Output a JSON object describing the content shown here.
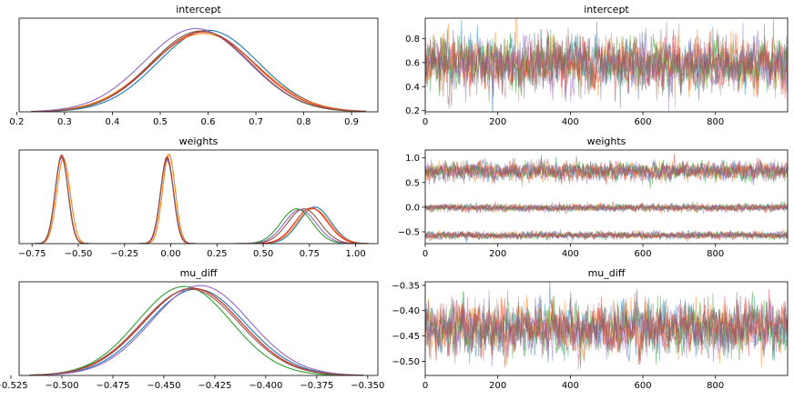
{
  "chart_data": [
    {
      "type": "line",
      "kind": "kde",
      "title": "intercept",
      "xlim": [
        0.205,
        0.955
      ],
      "ylim": [
        0,
        4.5
      ],
      "x_ticks": [
        0.2,
        0.3,
        0.4,
        0.5,
        0.6,
        0.7,
        0.8,
        0.9
      ],
      "y_ticks": [],
      "curves": [
        {
          "color": "#1f77b4",
          "gauss": [
            [
              0.6,
              0.105,
              1.0
            ]
          ]
        },
        {
          "color": "#ff7f0e",
          "gauss": [
            [
              0.59,
              0.11,
              0.96
            ]
          ]
        },
        {
          "color": "#2ca02c",
          "gauss": [
            [
              0.585,
              0.103,
              0.99
            ]
          ]
        },
        {
          "color": "#d62728",
          "gauss": [
            [
              0.59,
              0.106,
              0.98
            ]
          ]
        },
        {
          "color": "#9467bd",
          "gauss": [
            [
              0.575,
              0.108,
              1.02
            ]
          ]
        },
        {
          "color": "#8c564b",
          "gauss": [
            [
              0.585,
              0.104,
              0.99
            ]
          ]
        }
      ],
      "curve_range": [
        0.23,
        0.93
      ],
      "peak_y": 4.0
    },
    {
      "type": "line",
      "kind": "trace",
      "title": "intercept",
      "xlim": [
        0,
        999
      ],
      "ylim": [
        0.19,
        0.97
      ],
      "x_ticks": [
        0,
        200,
        400,
        600,
        800
      ],
      "y_ticks": [
        0.2,
        0.4,
        0.6,
        0.8
      ],
      "y_tick_labels": [
        "0.2",
        "0.4",
        "0.6",
        "0.8"
      ],
      "n_draws": 1000,
      "chains": [
        {
          "color": "#1f77b4",
          "bands": [
            {
              "mean": 0.59,
              "sd": 0.105
            }
          ]
        },
        {
          "color": "#ff7f0e",
          "bands": [
            {
              "mean": 0.59,
              "sd": 0.105
            }
          ]
        },
        {
          "color": "#2ca02c",
          "bands": [
            {
              "mean": 0.59,
              "sd": 0.105
            }
          ]
        },
        {
          "color": "#d62728",
          "bands": [
            {
              "mean": 0.59,
              "sd": 0.105
            }
          ]
        },
        {
          "color": "#9467bd",
          "bands": [
            {
              "mean": 0.59,
              "sd": 0.105
            }
          ]
        },
        {
          "color": "#8c564b",
          "bands": [
            {
              "mean": 0.59,
              "sd": 0.105
            }
          ]
        }
      ]
    },
    {
      "type": "line",
      "kind": "kde",
      "title": "weights",
      "xlim": [
        -0.82,
        1.12
      ],
      "ylim": [
        0,
        11
      ],
      "x_ticks": [
        -0.75,
        -0.5,
        -0.25,
        0.0,
        0.25,
        0.5,
        0.75,
        1.0
      ],
      "x_tick_labels": [
        "−0.75",
        "−0.50",
        "−0.25",
        "0.00",
        "0.25",
        "0.50",
        "0.75",
        "1.00"
      ],
      "y_ticks": [],
      "curves": [
        {
          "color": "#1f77b4",
          "gauss": [
            [
              -0.59,
              0.035,
              1.0
            ],
            [
              -0.02,
              0.035,
              0.98
            ],
            [
              0.78,
              0.085,
              0.42
            ]
          ]
        },
        {
          "color": "#ff7f0e",
          "gauss": [
            [
              -0.58,
              0.036,
              0.98
            ],
            [
              -0.01,
              0.034,
              1.03
            ],
            [
              0.77,
              0.088,
              0.4
            ]
          ]
        },
        {
          "color": "#2ca02c",
          "gauss": [
            [
              -0.59,
              0.035,
              1.0
            ],
            [
              -0.02,
              0.035,
              0.99
            ],
            [
              0.68,
              0.085,
              0.4
            ]
          ]
        },
        {
          "color": "#d62728",
          "gauss": [
            [
              -0.59,
              0.034,
              1.02
            ],
            [
              -0.02,
              0.034,
              1.0
            ],
            [
              0.76,
              0.087,
              0.41
            ]
          ]
        },
        {
          "color": "#9467bd",
          "gauss": [
            [
              -0.59,
              0.035,
              0.99
            ],
            [
              -0.02,
              0.036,
              0.96
            ],
            [
              0.7,
              0.086,
              0.39
            ]
          ]
        },
        {
          "color": "#8c564b",
          "gauss": [
            [
              -0.59,
              0.035,
              1.0
            ],
            [
              -0.02,
              0.035,
              0.98
            ],
            [
              0.72,
              0.087,
              0.4
            ]
          ]
        }
      ],
      "curve_range": [
        -0.76,
        1.07
      ],
      "peak_y": 10.5
    },
    {
      "type": "line",
      "kind": "trace",
      "title": "weights",
      "xlim": [
        0,
        999
      ],
      "ylim": [
        -0.74,
        1.16
      ],
      "x_ticks": [
        0,
        200,
        400,
        600,
        800
      ],
      "y_ticks": [
        -0.5,
        0.0,
        0.5,
        1.0
      ],
      "y_tick_labels": [
        "−0.5",
        "0.0",
        "0.5",
        "1.0"
      ],
      "n_draws": 1000,
      "chains": [
        {
          "color": "#1f77b4",
          "bands": [
            {
              "mean": 0.73,
              "sd": 0.09
            },
            {
              "mean": -0.01,
              "sd": 0.035
            },
            {
              "mean": -0.57,
              "sd": 0.035
            }
          ]
        },
        {
          "color": "#ff7f0e",
          "bands": [
            {
              "mean": 0.73,
              "sd": 0.09
            },
            {
              "mean": -0.01,
              "sd": 0.035
            },
            {
              "mean": -0.57,
              "sd": 0.035
            }
          ]
        },
        {
          "color": "#2ca02c",
          "bands": [
            {
              "mean": 0.73,
              "sd": 0.09
            },
            {
              "mean": -0.01,
              "sd": 0.035
            },
            {
              "mean": -0.57,
              "sd": 0.035
            }
          ]
        },
        {
          "color": "#d62728",
          "bands": [
            {
              "mean": 0.73,
              "sd": 0.09
            },
            {
              "mean": -0.01,
              "sd": 0.035
            },
            {
              "mean": -0.57,
              "sd": 0.035
            }
          ]
        },
        {
          "color": "#9467bd",
          "bands": [
            {
              "mean": 0.73,
              "sd": 0.09
            },
            {
              "mean": -0.01,
              "sd": 0.035
            },
            {
              "mean": -0.57,
              "sd": 0.035
            }
          ]
        },
        {
          "color": "#8c564b",
          "bands": [
            {
              "mean": 0.73,
              "sd": 0.09
            },
            {
              "mean": -0.01,
              "sd": 0.035
            },
            {
              "mean": -0.57,
              "sd": 0.035
            }
          ]
        }
      ]
    },
    {
      "type": "line",
      "kind": "kde",
      "title": "mu_diff",
      "xlim": [
        -0.521,
        -0.345
      ],
      "ylim": [
        0,
        25
      ],
      "x_ticks": [
        -0.525,
        -0.5,
        -0.475,
        -0.45,
        -0.425,
        -0.4,
        -0.375,
        -0.35
      ],
      "x_tick_labels": [
        "−0.525",
        "−0.500",
        "−0.475",
        "−0.450",
        "−0.425",
        "−0.400",
        "−0.375",
        "−0.350"
      ],
      "y_ticks": [],
      "curves": [
        {
          "color": "#1f77b4",
          "gauss": [
            [
              -0.434,
              0.024,
              0.98
            ]
          ]
        },
        {
          "color": "#ff7f0e",
          "gauss": [
            [
              -0.436,
              0.024,
              0.99
            ]
          ]
        },
        {
          "color": "#2ca02c",
          "gauss": [
            [
              -0.44,
              0.023,
              1.01
            ]
          ]
        },
        {
          "color": "#d62728",
          "gauss": [
            [
              -0.436,
              0.024,
              0.99
            ]
          ]
        },
        {
          "color": "#9467bd",
          "gauss": [
            [
              -0.432,
              0.024,
              1.02
            ]
          ]
        },
        {
          "color": "#8c564b",
          "gauss": [
            [
              -0.437,
              0.024,
              0.98
            ]
          ]
        }
      ],
      "curve_range": [
        -0.516,
        -0.352
      ],
      "peak_y": 24.0
    },
    {
      "type": "line",
      "kind": "trace",
      "title": "mu_diff",
      "xlim": [
        0,
        999
      ],
      "ylim": [
        -0.528,
        -0.343
      ],
      "x_ticks": [
        0,
        200,
        400,
        600,
        800
      ],
      "y_ticks": [
        -0.5,
        -0.45,
        -0.4,
        -0.35
      ],
      "y_tick_labels": [
        "−0.50",
        "−0.45",
        "−0.40",
        "−0.35"
      ],
      "n_draws": 1000,
      "chains": [
        {
          "color": "#1f77b4",
          "bands": [
            {
              "mean": -0.436,
              "sd": 0.024
            }
          ]
        },
        {
          "color": "#ff7f0e",
          "bands": [
            {
              "mean": -0.436,
              "sd": 0.024
            }
          ]
        },
        {
          "color": "#2ca02c",
          "bands": [
            {
              "mean": -0.436,
              "sd": 0.024
            }
          ]
        },
        {
          "color": "#d62728",
          "bands": [
            {
              "mean": -0.436,
              "sd": 0.024
            }
          ]
        },
        {
          "color": "#9467bd",
          "bands": [
            {
              "mean": -0.436,
              "sd": 0.024
            }
          ]
        },
        {
          "color": "#8c564b",
          "bands": [
            {
              "mean": -0.436,
              "sd": 0.024
            }
          ]
        }
      ]
    }
  ]
}
